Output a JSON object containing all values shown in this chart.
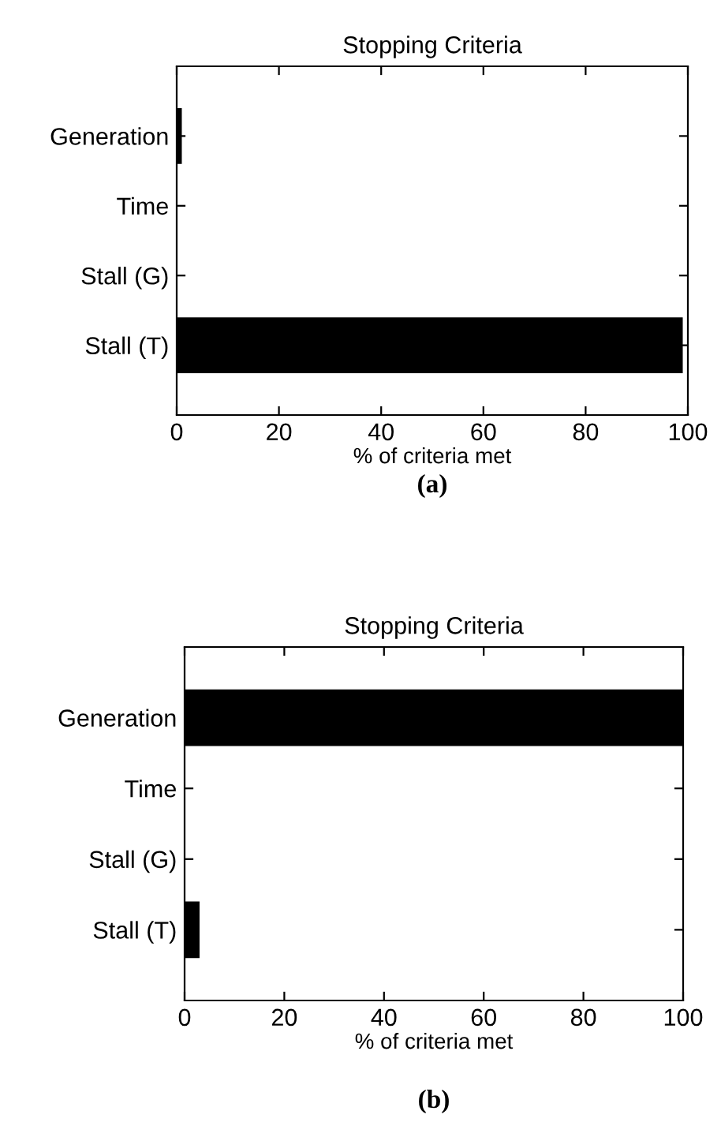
{
  "chart_data": [
    {
      "type": "bar",
      "orientation": "horizontal",
      "title": "Stopping Criteria",
      "xlabel": "% of criteria met",
      "categories": [
        "Generation",
        "Time",
        "Stall (G)",
        "Stall (T)"
      ],
      "values": [
        1,
        0,
        0,
        99
      ],
      "color": "#000000",
      "xlim": [
        0,
        100
      ],
      "xticks": [
        0,
        20,
        40,
        60,
        80,
        100
      ],
      "grid": false,
      "annotations": [
        "(a)"
      ]
    },
    {
      "type": "bar",
      "orientation": "horizontal",
      "title": "Stopping Criteria",
      "xlabel": "% of criteria met",
      "categories": [
        "Generation",
        "Time",
        "Stall (G)",
        "Stall (T)"
      ],
      "values": [
        100,
        0,
        0,
        3
      ],
      "color": "#000000",
      "xlim": [
        0,
        100
      ],
      "xticks": [
        0,
        20,
        40,
        60,
        80,
        100
      ],
      "grid": false,
      "annotations": [
        "(b)"
      ]
    }
  ]
}
